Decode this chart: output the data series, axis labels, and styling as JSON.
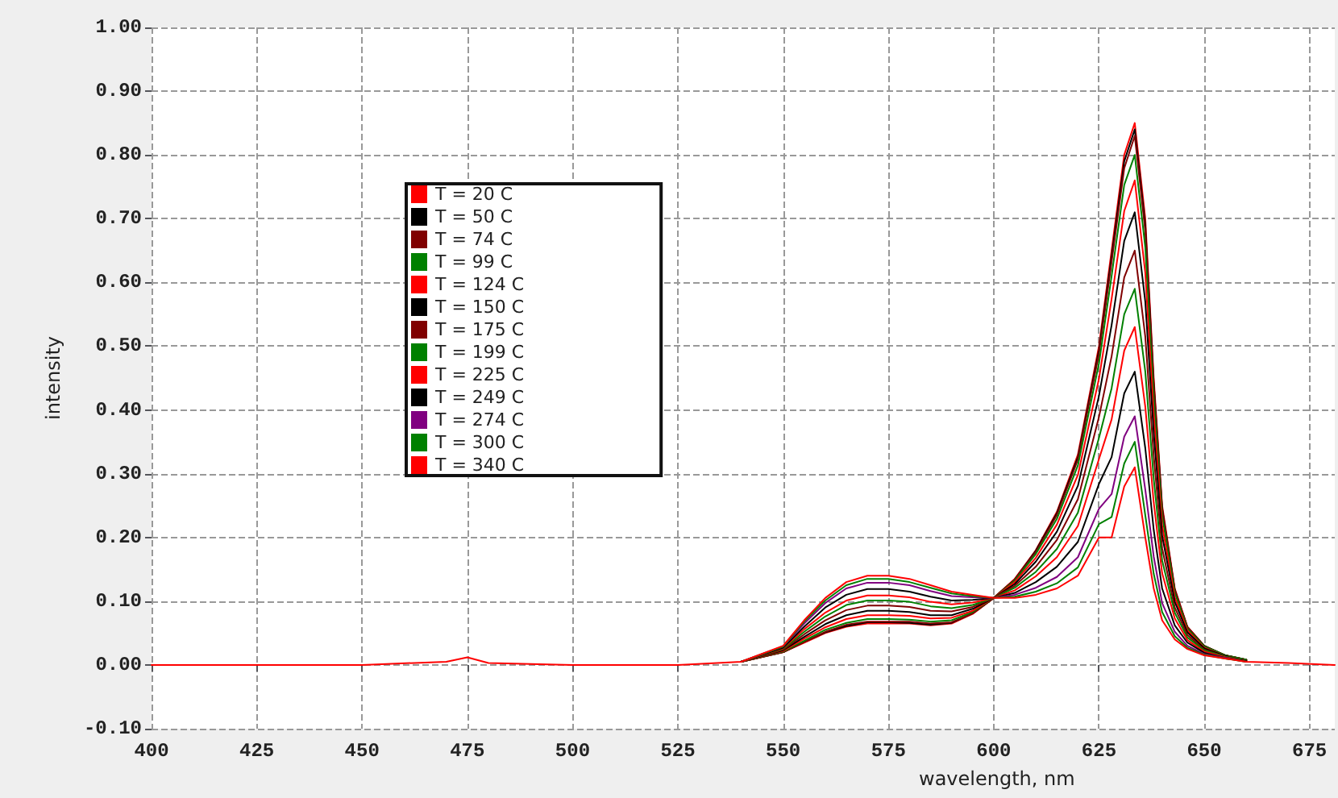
{
  "chart_data": {
    "type": "line",
    "xlabel": "wavelength, nm",
    "ylabel": "intensity",
    "xlim": [
      400,
      681
    ],
    "xticks": [
      400,
      425,
      450,
      475,
      500,
      525,
      550,
      575,
      600,
      625,
      650,
      675
    ],
    "ylim": [
      -0.1,
      1.0
    ],
    "yticks": [
      {
        "value": -0.1,
        "label": "-0.10"
      },
      {
        "value": 0,
        "label": "0.00"
      },
      {
        "value": 0.1,
        "label": "0.10"
      },
      {
        "value": 0.2,
        "label": "0.20"
      },
      {
        "value": 0.3,
        "label": "0.30"
      },
      {
        "value": 0.4,
        "label": "0.40"
      },
      {
        "value": 0.5,
        "label": "0.50"
      },
      {
        "value": 0.6,
        "label": "0.60"
      },
      {
        "value": 0.7,
        "label": "0.70"
      },
      {
        "value": 0.8,
        "label": "0.80"
      },
      {
        "value": 0.9,
        "label": "0.90"
      },
      {
        "value": 1.0,
        "label": "1.00"
      }
    ],
    "grid": true,
    "legend": "top left",
    "marker": "none",
    "line_style": "solid",
    "x": [
      400,
      425,
      450,
      470,
      475,
      480,
      500,
      525,
      540,
      550,
      555,
      560,
      565,
      570,
      575,
      580,
      585,
      590,
      595,
      600,
      605,
      610,
      615,
      620,
      625,
      628,
      631,
      633.5,
      636,
      638,
      640,
      643,
      646,
      650,
      655,
      660,
      670,
      681
    ],
    "series": [
      {
        "name": "T = 20 C",
        "color": "#ff0000",
        "values": [
          null,
          null,
          null,
          null,
          null,
          null,
          null,
          null,
          0.005,
          0.02,
          0.035,
          0.05,
          0.06,
          0.065,
          0.065,
          0.065,
          0.062,
          0.065,
          0.08,
          0.105,
          0.135,
          0.18,
          0.24,
          0.33,
          0.5,
          0.65,
          0.8,
          0.85,
          0.7,
          0.45,
          0.25,
          0.12,
          0.06,
          0.03,
          0.015,
          0.008,
          null,
          null
        ]
      },
      {
        "name": "T = 50 C",
        "color": "#000000",
        "values": [
          null,
          null,
          null,
          null,
          null,
          null,
          null,
          null,
          0.005,
          0.02,
          0.036,
          0.051,
          0.061,
          0.067,
          0.067,
          0.066,
          0.063,
          0.066,
          0.081,
          0.105,
          0.134,
          0.179,
          0.238,
          0.326,
          0.494,
          0.641,
          0.79,
          0.84,
          0.69,
          0.443,
          0.246,
          0.118,
          0.059,
          0.03,
          0.015,
          0.008,
          null,
          null
        ]
      },
      {
        "name": "T = 74 C",
        "color": "#800000",
        "values": [
          null,
          null,
          null,
          null,
          null,
          null,
          null,
          null,
          0.005,
          0.02,
          0.036,
          0.052,
          0.063,
          0.068,
          0.068,
          0.068,
          0.065,
          0.067,
          0.081,
          0.105,
          0.134,
          0.177,
          0.235,
          0.322,
          0.488,
          0.632,
          0.779,
          0.83,
          0.68,
          0.437,
          0.243,
          0.117,
          0.059,
          0.029,
          0.015,
          0.008,
          null,
          null
        ]
      },
      {
        "name": "T = 99 C",
        "color": "#008000",
        "values": [
          null,
          null,
          null,
          null,
          null,
          null,
          null,
          null,
          0.005,
          0.021,
          0.038,
          0.055,
          0.066,
          0.072,
          0.072,
          0.071,
          0.068,
          0.07,
          0.083,
          0.105,
          0.132,
          0.174,
          0.229,
          0.313,
          0.473,
          0.61,
          0.753,
          0.8,
          0.655,
          0.42,
          0.234,
          0.113,
          0.057,
          0.029,
          0.015,
          0.008,
          null,
          null
        ]
      },
      {
        "name": "T = 124 C",
        "color": "#ff0000",
        "values": [
          null,
          null,
          null,
          null,
          null,
          null,
          null,
          null,
          0.005,
          0.022,
          0.041,
          0.059,
          0.072,
          0.078,
          0.078,
          0.077,
          0.073,
          0.074,
          0.085,
          0.105,
          0.13,
          0.168,
          0.22,
          0.298,
          0.449,
          0.574,
          0.712,
          0.76,
          0.615,
          0.394,
          0.219,
          0.106,
          0.054,
          0.027,
          0.014,
          0.007,
          null,
          null
        ]
      },
      {
        "name": "T = 150 C",
        "color": "#000000",
        "values": [
          null,
          null,
          null,
          null,
          null,
          null,
          null,
          null,
          0.005,
          0.023,
          0.044,
          0.064,
          0.078,
          0.085,
          0.085,
          0.083,
          0.078,
          0.078,
          0.088,
          0.105,
          0.127,
          0.162,
          0.209,
          0.281,
          0.422,
          0.533,
          0.665,
          0.71,
          0.57,
          0.364,
          0.203,
          0.099,
          0.051,
          0.026,
          0.014,
          0.007,
          null,
          null
        ]
      },
      {
        "name": "T = 175 C",
        "color": "#800000",
        "values": [
          null,
          null,
          null,
          null,
          null,
          null,
          null,
          null,
          0.005,
          0.024,
          0.048,
          0.07,
          0.086,
          0.093,
          0.093,
          0.091,
          0.085,
          0.084,
          0.091,
          0.105,
          0.124,
          0.154,
          0.196,
          0.26,
          0.389,
          0.484,
          0.608,
          0.65,
          0.515,
          0.328,
          0.183,
          0.09,
          0.047,
          0.024,
          0.013,
          0.007,
          null,
          null
        ]
      },
      {
        "name": "T = 199 C",
        "color": "#008000",
        "values": [
          null,
          null,
          null,
          null,
          null,
          null,
          null,
          null,
          0.005,
          0.025,
          0.052,
          0.076,
          0.094,
          0.101,
          0.101,
          0.099,
          0.092,
          0.089,
          0.094,
          0.105,
          0.121,
          0.146,
          0.182,
          0.239,
          0.356,
          0.434,
          0.55,
          0.59,
          0.46,
          0.292,
          0.164,
          0.082,
          0.043,
          0.023,
          0.013,
          0.007,
          null,
          null
        ]
      },
      {
        "name": "T = 225 C",
        "color": "#ff0000",
        "values": [
          null,
          null,
          null,
          null,
          null,
          null,
          null,
          null,
          0.005,
          0.026,
          0.056,
          0.082,
          0.101,
          0.109,
          0.109,
          0.106,
          0.099,
          0.095,
          0.098,
          0.105,
          0.117,
          0.139,
          0.169,
          0.218,
          0.323,
          0.385,
          0.493,
          0.53,
          0.405,
          0.255,
          0.144,
          0.073,
          0.039,
          0.021,
          0.012,
          0.006,
          null,
          null
        ]
      },
      {
        "name": "T = 249 C",
        "color": "#000000",
        "values": [
          null,
          null,
          null,
          null,
          null,
          null,
          null,
          null,
          0.005,
          0.027,
          0.06,
          0.09,
          0.11,
          0.119,
          0.119,
          0.115,
          0.107,
          0.101,
          0.102,
          0.105,
          0.113,
          0.13,
          0.154,
          0.193,
          0.284,
          0.326,
          0.426,
          0.46,
          0.34,
          0.212,
          0.12,
          0.062,
          0.035,
          0.019,
          0.011,
          0.006,
          null,
          null
        ]
      },
      {
        "name": "T = 274 C",
        "color": "#800080",
        "values": [
          null,
          null,
          null,
          null,
          null,
          null,
          null,
          null,
          0.005,
          0.029,
          0.065,
          0.097,
          0.12,
          0.129,
          0.129,
          0.125,
          0.116,
          0.108,
          0.106,
          0.105,
          0.11,
          0.121,
          0.138,
          0.169,
          0.245,
          0.268,
          0.358,
          0.39,
          0.275,
          0.17,
          0.097,
          0.052,
          0.03,
          0.017,
          0.011,
          0.005,
          null,
          null
        ]
      },
      {
        "name": "T = 300 C",
        "color": "#008000",
        "values": [
          null,
          null,
          null,
          null,
          null,
          null,
          null,
          null,
          0.005,
          0.029,
          0.068,
          0.101,
          0.125,
          0.135,
          0.135,
          0.13,
          0.121,
          0.112,
          0.108,
          0.105,
          0.107,
          0.115,
          0.128,
          0.153,
          0.221,
          0.232,
          0.316,
          0.35,
          0.235,
          0.143,
          0.083,
          0.045,
          0.027,
          0.016,
          0.01,
          0.005,
          null,
          null
        ]
      },
      {
        "name": "T = 340 C",
        "color": "#ff0000",
        "values": [
          0,
          0,
          0,
          0.005,
          0.012,
          0.003,
          0,
          0,
          0.005,
          0.03,
          0.07,
          0.105,
          0.13,
          0.14,
          0.14,
          0.135,
          0.125,
          0.115,
          0.11,
          0.105,
          0.105,
          0.11,
          0.12,
          0.14,
          0.2,
          0.2,
          0.28,
          0.31,
          0.2,
          0.12,
          0.07,
          0.04,
          0.025,
          0.015,
          0.01,
          0.005,
          0.003,
          0
        ]
      }
    ]
  }
}
